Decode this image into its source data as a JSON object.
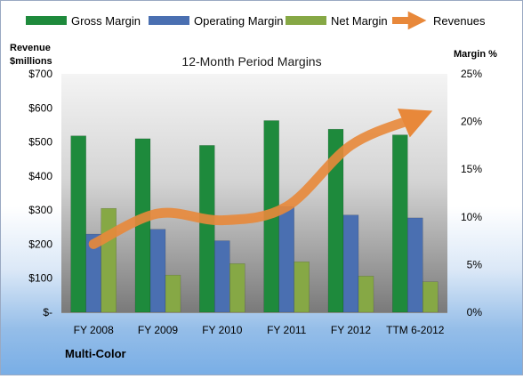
{
  "chart_data": {
    "type": "bar",
    "title": "12-Month Period Margins",
    "categories": [
      "FY 2008",
      "FY 2009",
      "FY 2010",
      "FY 2011",
      "FY 2012",
      "TTM 6-2012"
    ],
    "series": [
      {
        "name": "Gross Margin",
        "axis": "right",
        "unit": "%",
        "color": "#1e8a3c",
        "values": [
          18.5,
          18.2,
          17.5,
          20.1,
          19.2,
          18.6
        ]
      },
      {
        "name": "Operating Margin",
        "axis": "right",
        "unit": "%",
        "color": "#4a6fb1",
        "values": [
          8.2,
          8.7,
          7.5,
          11.1,
          10.2,
          9.9
        ]
      },
      {
        "name": "Net Margin",
        "axis": "right",
        "unit": "%",
        "color": "#86a845",
        "values": [
          10.9,
          3.9,
          5.1,
          5.3,
          3.8,
          3.2
        ]
      },
      {
        "name": "Revenues",
        "type": "line",
        "axis": "left",
        "unit": "$millions",
        "color": "#e8883a",
        "values": [
          200,
          290,
          270,
          310,
          490,
          570
        ]
      }
    ],
    "ylabel_left": [
      "Revenue",
      "$millions"
    ],
    "ylabel_right": "Margin %",
    "ylim_left": [
      0,
      700
    ],
    "ylim_right": [
      0,
      25
    ],
    "yticks_left": [
      "$700",
      "$600",
      "$500",
      "$400",
      "$300",
      "$200",
      "$100",
      "$-"
    ],
    "yticks_right": [
      "25%",
      "20%",
      "15%",
      "10%",
      "5%",
      "0%"
    ],
    "legend": "top",
    "grid": false
  },
  "footer": {
    "company": "Multi-Color"
  }
}
